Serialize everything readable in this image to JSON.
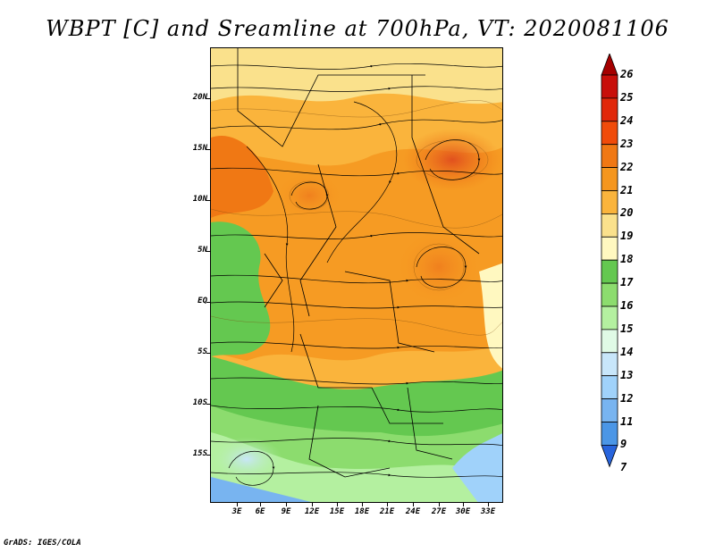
{
  "title": "WBPT [C] and Sreamline at 700hPa, VT: 2020081106",
  "credit": "GrADS: IGES/COLA",
  "map": {
    "lat_labels": [
      "20N",
      "15N",
      "10N",
      "5N",
      "EQ",
      "5S",
      "10S",
      "15S"
    ],
    "lon_labels": [
      "3E",
      "6E",
      "9E",
      "12E",
      "15E",
      "18E",
      "21E",
      "24E",
      "27E",
      "30E",
      "33E"
    ]
  },
  "legend": {
    "labels": [
      "26",
      "25",
      "24",
      "23",
      "22",
      "21",
      "20",
      "19",
      "18",
      "17",
      "16",
      "15",
      "14",
      "13",
      "12",
      "11",
      "9",
      "7"
    ],
    "colors": [
      "#a50000",
      "#c80f0a",
      "#e1280a",
      "#f04b0a",
      "#f07814",
      "#f5961e",
      "#fab43c",
      "#fae18c",
      "#fff8c0",
      "#64c850",
      "#8cdc6e",
      "#b4f0a0",
      "#e0fae6",
      "#c8e6fa",
      "#a0d2fa",
      "#78b4f0",
      "#4b96e6",
      "#2864dc"
    ]
  }
}
